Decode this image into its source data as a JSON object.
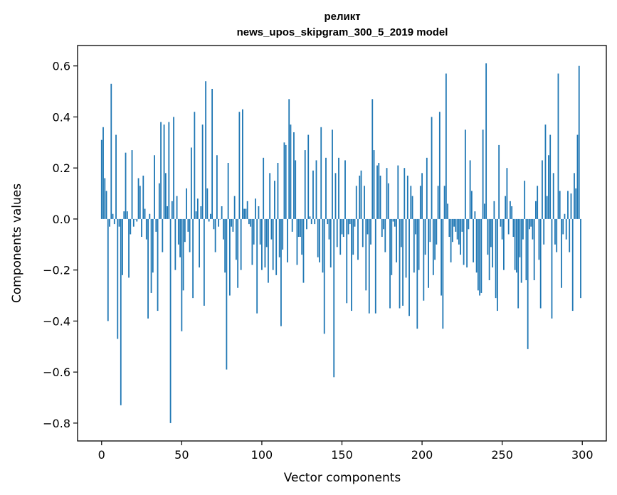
{
  "chart_data": {
    "type": "bar",
    "title": "реликт",
    "subtitle": "news_upos_skipgram_300_5_2019 model",
    "xlabel": "Vector components",
    "ylabel": "Components values",
    "xlim": [
      -15,
      315
    ],
    "ylim": [
      -0.87,
      0.68
    ],
    "xticks": [
      0,
      50,
      100,
      150,
      200,
      250,
      300
    ],
    "yticks": [
      0.6,
      0.4,
      0.2,
      0.0,
      -0.2,
      -0.4,
      -0.6,
      -0.8
    ],
    "ytick_labels": [
      "0.6",
      "0.4",
      "0.2",
      "0.0",
      "−0.2",
      "−0.4",
      "−0.6",
      "−0.8"
    ],
    "xtick_labels": [
      "0",
      "50",
      "100",
      "150",
      "200",
      "250",
      "300"
    ],
    "grid": false,
    "bar_color": "#1f77b4",
    "x_start": 0,
    "values": [
      0.31,
      0.36,
      0.16,
      0.11,
      -0.4,
      -0.03,
      0.53,
      0.02,
      -0.02,
      0.33,
      -0.47,
      -0.03,
      -0.73,
      -0.22,
      0.03,
      0.26,
      0.03,
      -0.23,
      -0.06,
      0.27,
      -0.03,
      0.0,
      -0.01,
      0.16,
      0.13,
      -0.07,
      0.17,
      0.04,
      -0.08,
      -0.39,
      0.02,
      -0.29,
      -0.21,
      0.25,
      -0.05,
      -0.36,
      0.14,
      0.38,
      -0.13,
      0.37,
      0.18,
      0.05,
      0.38,
      -0.8,
      0.07,
      0.4,
      -0.2,
      0.09,
      -0.1,
      -0.15,
      -0.44,
      -0.28,
      -0.09,
      0.12,
      -0.05,
      -0.13,
      0.28,
      -0.31,
      0.42,
      0.03,
      0.08,
      -0.19,
      0.05,
      0.37,
      -0.34,
      0.54,
      0.12,
      -0.01,
      0.02,
      0.51,
      -0.04,
      -0.13,
      0.25,
      -0.03,
      0.0,
      0.05,
      -0.08,
      -0.21,
      -0.59,
      0.22,
      -0.3,
      -0.03,
      -0.05,
      0.09,
      -0.16,
      -0.27,
      0.42,
      -0.2,
      0.43,
      0.04,
      0.04,
      0.07,
      -0.02,
      -0.03,
      -0.18,
      -0.1,
      0.08,
      -0.37,
      0.05,
      -0.1,
      -0.2,
      0.24,
      -0.19,
      -0.11,
      -0.25,
      0.18,
      -0.08,
      -0.2,
      0.15,
      -0.22,
      0.22,
      -0.15,
      -0.42,
      -0.12,
      0.3,
      0.29,
      -0.17,
      0.47,
      0.37,
      -0.05,
      0.34,
      0.23,
      -0.18,
      -0.07,
      -0.07,
      -0.14,
      -0.25,
      0.27,
      -0.04,
      0.33,
      0.01,
      -0.02,
      0.19,
      -0.02,
      0.23,
      -0.15,
      -0.17,
      0.36,
      -0.21,
      -0.45,
      0.24,
      -0.02,
      -0.08,
      -0.19,
      0.35,
      -0.62,
      0.18,
      -0.11,
      0.24,
      -0.14,
      -0.06,
      -0.07,
      0.23,
      -0.33,
      -0.06,
      -0.02,
      -0.36,
      -0.14,
      -0.03,
      0.13,
      -0.16,
      0.17,
      0.19,
      -0.11,
      0.13,
      -0.28,
      -0.06,
      -0.37,
      -0.1,
      0.47,
      0.27,
      -0.37,
      0.21,
      0.22,
      0.17,
      -0.07,
      -0.04,
      -0.13,
      0.2,
      0.14,
      -0.35,
      -0.22,
      -0.01,
      -0.03,
      -0.17,
      0.21,
      -0.35,
      -0.11,
      -0.34,
      0.2,
      -0.23,
      0.17,
      -0.38,
      0.13,
      0.09,
      -0.21,
      -0.06,
      -0.43,
      -0.2,
      0.13,
      0.18,
      -0.32,
      -0.14,
      0.24,
      -0.27,
      -0.09,
      0.4,
      -0.22,
      -0.16,
      -0.1,
      0.13,
      0.42,
      -0.3,
      -0.43,
      0.13,
      0.57,
      0.06,
      -0.07,
      -0.17,
      -0.09,
      -0.03,
      -0.05,
      -0.08,
      -0.1,
      -0.14,
      -0.05,
      -0.18,
      0.35,
      -0.19,
      -0.04,
      0.23,
      0.11,
      -0.17,
      0.03,
      -0.21,
      -0.28,
      -0.3,
      -0.29,
      0.35,
      0.06,
      0.61,
      -0.14,
      -0.24,
      -0.11,
      -0.19,
      0.07,
      -0.31,
      -0.36,
      0.29,
      -0.03,
      -0.08,
      -0.2,
      0.09,
      0.2,
      -0.06,
      0.07,
      0.05,
      -0.07,
      -0.2,
      -0.21,
      -0.35,
      -0.15,
      -0.25,
      -0.08,
      0.15,
      -0.24,
      -0.51,
      -0.04,
      -0.03,
      -0.08,
      -0.24,
      0.07,
      0.13,
      -0.16,
      -0.35,
      0.23,
      -0.1,
      0.37,
      0.09,
      0.25,
      0.33,
      -0.39,
      0.18,
      -0.1,
      -0.13,
      0.57,
      0.11,
      -0.27,
      -0.06,
      0.02,
      -0.08,
      0.11,
      -0.13,
      0.1,
      -0.36,
      0.18,
      0.12,
      0.33,
      0.6,
      -0.31
    ]
  }
}
